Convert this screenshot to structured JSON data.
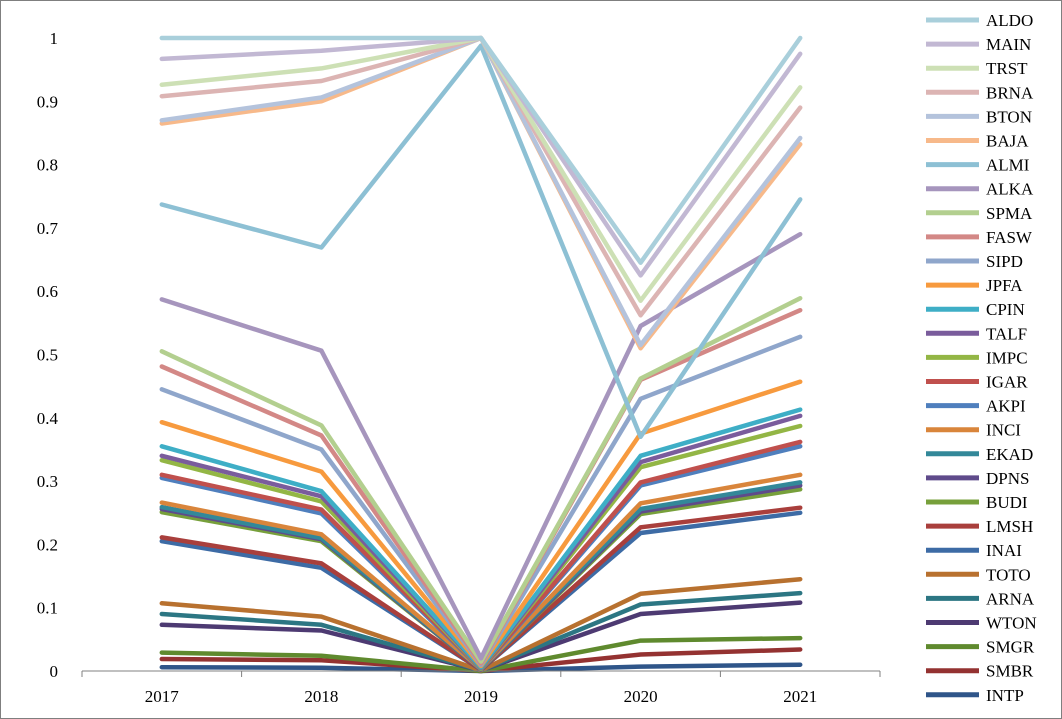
{
  "chart_data": {
    "type": "line",
    "title": "",
    "xlabel": "",
    "ylabel": "",
    "categories": [
      "2017",
      "2018",
      "2019",
      "2020",
      "2021"
    ],
    "ylim": [
      0,
      1
    ],
    "yticks": [
      "0",
      "0.1",
      "0.2",
      "0.3",
      "0.4",
      "0.5",
      "0.6",
      "0.7",
      "0.8",
      "0.9",
      "1"
    ],
    "grid": false,
    "legend_position": "right",
    "series": [
      {
        "name": "ALDO",
        "color": "#a9cfdb",
        "values": [
          1.0,
          1.0,
          1.0,
          0.645,
          1.0
        ]
      },
      {
        "name": "MAIN",
        "color": "#c2b8d3",
        "values": [
          0.967,
          0.98,
          1.0,
          0.625,
          0.975
        ]
      },
      {
        "name": "TRST",
        "color": "#cde0b5",
        "values": [
          0.926,
          0.952,
          1.0,
          0.585,
          0.922
        ]
      },
      {
        "name": "BRNA",
        "color": "#dcb4b3",
        "values": [
          0.908,
          0.932,
          1.0,
          0.562,
          0.89
        ]
      },
      {
        "name": "BTON",
        "color": "#b4c3dc",
        "values": [
          0.87,
          0.906,
          1.0,
          0.515,
          0.842
        ]
      },
      {
        "name": "BAJA",
        "color": "#f7b98a",
        "values": [
          0.865,
          0.9,
          1.0,
          0.51,
          0.832
        ]
      },
      {
        "name": "ALMI",
        "color": "#8dc0d4",
        "values": [
          0.737,
          0.669,
          0.988,
          0.37,
          0.745
        ]
      },
      {
        "name": "ALKA",
        "color": "#a695bd",
        "values": [
          0.587,
          0.506,
          0.02,
          0.545,
          0.69
        ]
      },
      {
        "name": "SPMA",
        "color": "#b3cf8f",
        "values": [
          0.505,
          0.388,
          0.015,
          0.462,
          0.589
        ]
      },
      {
        "name": "FASW",
        "color": "#d38886",
        "values": [
          0.481,
          0.372,
          0.012,
          0.46,
          0.57
        ]
      },
      {
        "name": "SIPD",
        "color": "#8fa6cb",
        "values": [
          0.445,
          0.35,
          0.01,
          0.43,
          0.528
        ]
      },
      {
        "name": "JPFA",
        "color": "#f79a3e",
        "values": [
          0.393,
          0.315,
          0.008,
          0.375,
          0.457
        ]
      },
      {
        "name": "CPIN",
        "color": "#3eaec6",
        "values": [
          0.355,
          0.284,
          0.006,
          0.34,
          0.413
        ]
      },
      {
        "name": "TALF",
        "color": "#7a5c9c",
        "values": [
          0.34,
          0.276,
          0.005,
          0.33,
          0.403
        ]
      },
      {
        "name": "IMPC",
        "color": "#93b645",
        "values": [
          0.333,
          0.268,
          0.004,
          0.322,
          0.387
        ]
      },
      {
        "name": "IGAR",
        "color": "#c0504d",
        "values": [
          0.31,
          0.255,
          0.004,
          0.298,
          0.362
        ]
      },
      {
        "name": "AKPI",
        "color": "#4f7fbd",
        "values": [
          0.305,
          0.249,
          0.003,
          0.293,
          0.355
        ]
      },
      {
        "name": "INCI",
        "color": "#d9853b",
        "values": [
          0.266,
          0.216,
          0.003,
          0.265,
          0.31
        ]
      },
      {
        "name": "EKAD",
        "color": "#338899",
        "values": [
          0.259,
          0.21,
          0.003,
          0.256,
          0.298
        ]
      },
      {
        "name": "DPNS",
        "color": "#5f4b8b",
        "values": [
          0.256,
          0.208,
          0.002,
          0.252,
          0.293
        ]
      },
      {
        "name": "BUDI",
        "color": "#77a03b",
        "values": [
          0.251,
          0.205,
          0.002,
          0.248,
          0.287
        ]
      },
      {
        "name": "LMSH",
        "color": "#a93f3c",
        "values": [
          0.211,
          0.17,
          0.002,
          0.227,
          0.258
        ]
      },
      {
        "name": "INAI",
        "color": "#3d6ba5",
        "values": [
          0.205,
          0.163,
          0.002,
          0.218,
          0.25
        ]
      },
      {
        "name": "TOTO",
        "color": "#b8712f",
        "values": [
          0.107,
          0.086,
          0.001,
          0.122,
          0.145
        ]
      },
      {
        "name": "ARNA",
        "color": "#2c7683",
        "values": [
          0.09,
          0.073,
          0.001,
          0.105,
          0.123
        ]
      },
      {
        "name": "WTON",
        "color": "#4d3a72",
        "values": [
          0.073,
          0.064,
          0.001,
          0.09,
          0.108
        ]
      },
      {
        "name": "SMGR",
        "color": "#5f8a2e",
        "values": [
          0.029,
          0.024,
          0.0,
          0.048,
          0.052
        ]
      },
      {
        "name": "SMBR",
        "color": "#943231",
        "values": [
          0.019,
          0.017,
          0.0,
          0.026,
          0.034
        ]
      },
      {
        "name": "INTP",
        "color": "#2f5589",
        "values": [
          0.006,
          0.005,
          0.0,
          0.007,
          0.01
        ]
      }
    ]
  }
}
